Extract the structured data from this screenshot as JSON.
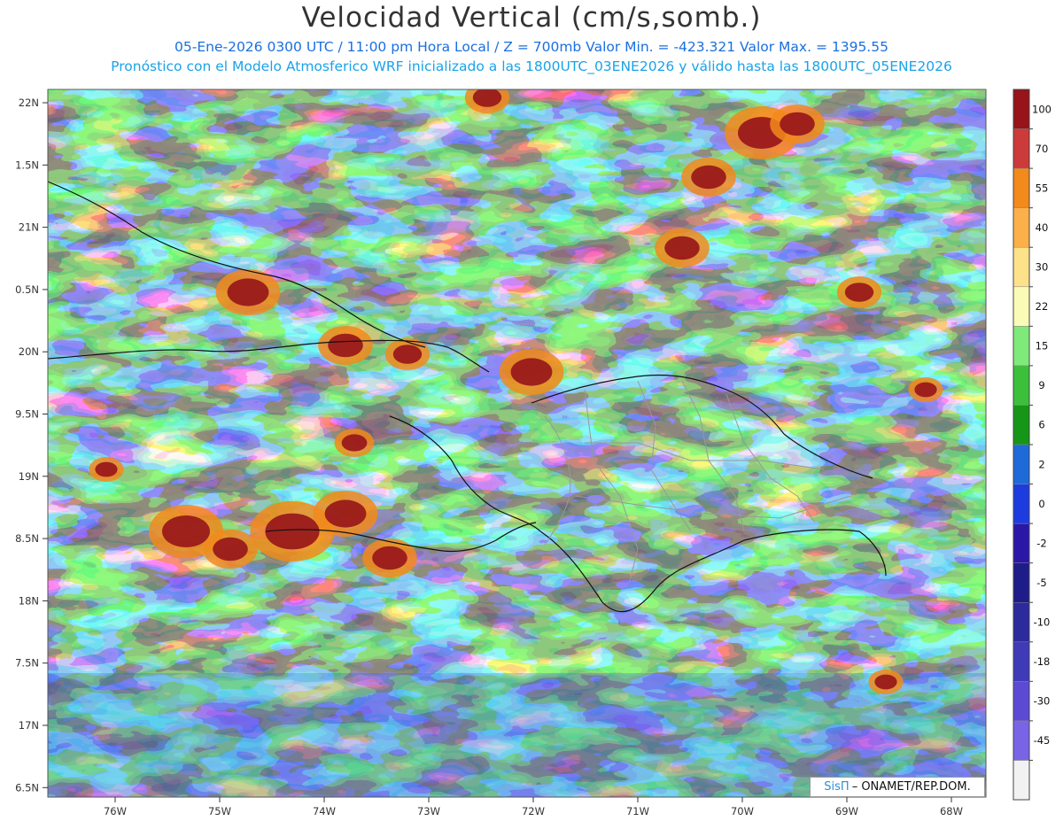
{
  "header": {
    "title": "Velocidad Vertical (cm/s,somb.)",
    "line1": "05-Ene-2026  0300 UTC / 11:00 pm Hora Local / Z = 700mb   Valor Min. = -423.321   Valor Max. = 1395.55",
    "line2": "Pronóstico con el Modelo Atmosferico WRF inicializado a las 1800UTC_03ENE2026 y válido hasta las  1800UTC_05ENE2026"
  },
  "map": {
    "lat_labels": [
      "22N",
      "1.5N",
      "21N",
      "0.5N",
      "20N",
      "9.5N",
      "19N",
      "8.5N",
      "18N",
      "7.5N",
      "17N",
      "6.5N"
    ],
    "lon_labels": [
      "76W",
      "75W",
      "74W",
      "73W",
      "72W",
      "71W",
      "70W",
      "69W",
      "68W"
    ]
  },
  "colorbar": {
    "labels": [
      "100",
      "70",
      "55",
      "40",
      "30",
      "22",
      "15",
      "9",
      "6",
      "2",
      "0",
      "-2",
      "-5",
      "-10",
      "-18",
      "-30",
      "-45"
    ],
    "colors": [
      "#f2f2f2",
      "#7a64e6",
      "#5c4ad4",
      "#3e3ab8",
      "#2c2a9c",
      "#1e1c88",
      "#2a17a8",
      "#1d3ce0",
      "#1e6ad8",
      "#169616",
      "#3cc03c",
      "#7fea7a",
      "#fbfbb8",
      "#fde28a",
      "#fbb04a",
      "#f28a1c",
      "#cc3a3a",
      "#96141a"
    ]
  },
  "credit": {
    "logo": "SisΠ",
    "text": "– ONAMET/REP.DOM."
  }
}
